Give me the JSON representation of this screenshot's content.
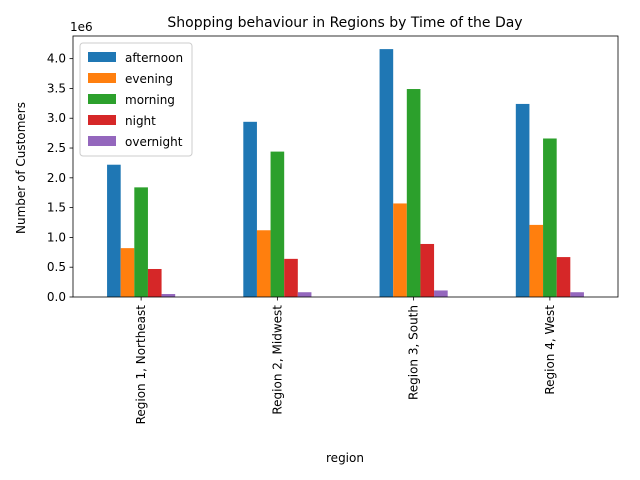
{
  "chart_data": {
    "type": "bar",
    "title": "Shopping behaviour in Regions by Time of the Day",
    "xlabel": "region",
    "ylabel": "Number of Customers",
    "y_offset_label": "1e6",
    "ylim": [
      0,
      4.38
    ],
    "yticks": [
      0.0,
      0.5,
      1.0,
      1.5,
      2.0,
      2.5,
      3.0,
      3.5,
      4.0
    ],
    "ytick_labels": [
      "0.0",
      "0.5",
      "1.0",
      "1.5",
      "2.0",
      "2.5",
      "3.0",
      "3.5",
      "4.0"
    ],
    "categories": [
      "Region 1, Northeast",
      "Region 2, Midwest",
      "Region 3, South",
      "Region 4, West"
    ],
    "series": [
      {
        "name": "afternoon",
        "color": "#1f77b4",
        "values": [
          2.22,
          2.94,
          4.16,
          3.24
        ]
      },
      {
        "name": "evening",
        "color": "#ff7f0e",
        "values": [
          0.82,
          1.12,
          1.57,
          1.21
        ]
      },
      {
        "name": "morning",
        "color": "#2ca02c",
        "values": [
          1.84,
          2.44,
          3.49,
          2.66
        ]
      },
      {
        "name": "night",
        "color": "#d62728",
        "values": [
          0.47,
          0.64,
          0.89,
          0.67
        ]
      },
      {
        "name": "overnight",
        "color": "#9467bd",
        "values": [
          0.05,
          0.08,
          0.11,
          0.08
        ]
      }
    ],
    "legend_position": "top-left",
    "grid": false
  }
}
